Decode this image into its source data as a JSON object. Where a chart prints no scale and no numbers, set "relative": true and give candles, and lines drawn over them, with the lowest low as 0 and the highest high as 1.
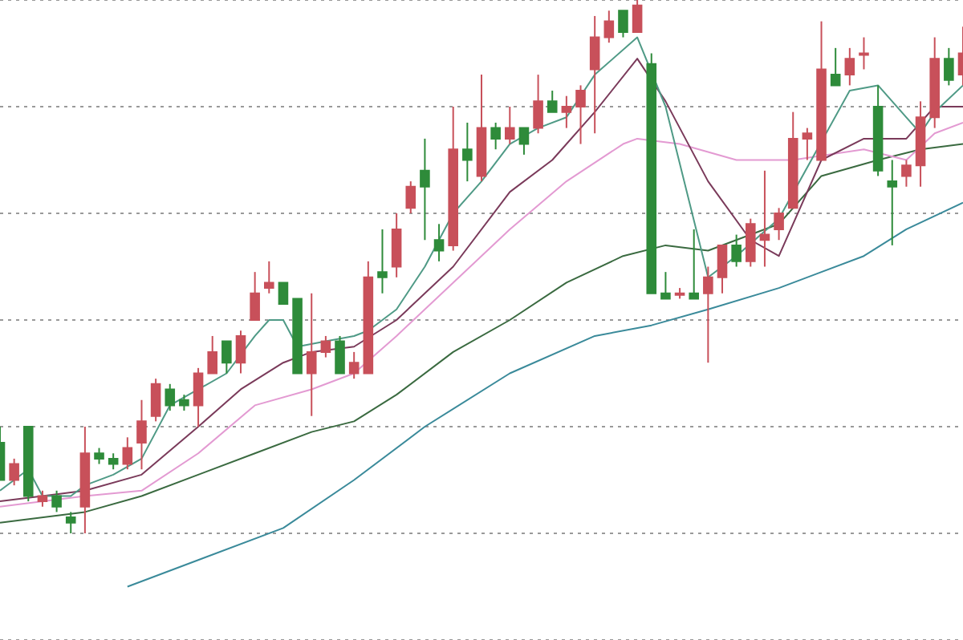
{
  "chart_data": {
    "type": "candlestick",
    "relative": true,
    "grid": "y",
    "categories": [
      null,
      null,
      null,
      null,
      null,
      null,
      null,
      null,
      null,
      null,
      null,
      null,
      null,
      null,
      null,
      null,
      null,
      null,
      null,
      null,
      null,
      null,
      null,
      null,
      null,
      null,
      null,
      null,
      null,
      null,
      null,
      null,
      null,
      null,
      null,
      null,
      null,
      null,
      null,
      null,
      null,
      null,
      null,
      null,
      null,
      null,
      null,
      null,
      null,
      null,
      null,
      null,
      null,
      null,
      null,
      null,
      null,
      null,
      null,
      null,
      null,
      null,
      null,
      null,
      null,
      null,
      null,
      null,
      null
    ],
    "ohlc": [
      [
        0.17,
        0.2,
        0.1,
        0.1
      ],
      [
        0.1,
        0.14,
        0.09,
        0.13
      ],
      [
        0.2,
        0.2,
        0.06,
        0.07
      ],
      [
        0.06,
        0.08,
        0.05,
        0.07
      ],
      [
        0.07,
        0.08,
        0.04,
        0.05
      ],
      [
        0.03,
        0.04,
        0.0,
        0.02
      ],
      [
        0.05,
        0.2,
        0.0,
        0.15
      ],
      [
        0.15,
        0.16,
        0.13,
        0.14
      ],
      [
        0.14,
        0.15,
        0.12,
        0.13
      ],
      [
        0.13,
        0.18,
        0.12,
        0.16
      ],
      [
        0.17,
        0.25,
        0.12,
        0.21
      ],
      [
        0.22,
        0.29,
        0.21,
        0.28
      ],
      [
        0.27,
        0.28,
        0.23,
        0.24
      ],
      [
        0.25,
        0.26,
        0.23,
        0.24
      ],
      [
        0.24,
        0.31,
        0.2,
        0.3
      ],
      [
        0.3,
        0.37,
        0.3,
        0.34
      ],
      [
        0.36,
        0.36,
        0.3,
        0.32
      ],
      [
        0.32,
        0.38,
        0.3,
        0.37
      ],
      [
        0.4,
        0.49,
        0.4,
        0.45
      ],
      [
        0.46,
        0.51,
        0.45,
        0.47
      ],
      [
        0.47,
        0.47,
        0.43,
        0.43
      ],
      [
        0.44,
        0.44,
        0.3,
        0.3
      ],
      [
        0.3,
        0.45,
        0.22,
        0.34
      ],
      [
        0.34,
        0.37,
        0.33,
        0.36
      ],
      [
        0.36,
        0.37,
        0.3,
        0.3
      ],
      [
        0.3,
        0.34,
        0.29,
        0.32
      ],
      [
        0.3,
        0.51,
        0.3,
        0.48
      ],
      [
        0.49,
        0.57,
        0.45,
        0.48
      ],
      [
        0.5,
        0.6,
        0.48,
        0.57
      ],
      [
        0.61,
        0.66,
        0.6,
        0.65
      ],
      [
        0.68,
        0.74,
        0.55,
        0.65
      ],
      [
        0.55,
        0.58,
        0.51,
        0.53
      ],
      [
        0.54,
        0.8,
        0.53,
        0.72
      ],
      [
        0.72,
        0.77,
        0.66,
        0.7
      ],
      [
        0.67,
        0.86,
        0.66,
        0.76
      ],
      [
        0.76,
        0.77,
        0.72,
        0.74
      ],
      [
        0.74,
        0.8,
        0.73,
        0.76
      ],
      [
        0.76,
        0.76,
        0.71,
        0.73
      ],
      [
        0.76,
        0.86,
        0.75,
        0.81
      ],
      [
        0.81,
        0.83,
        0.79,
        0.79
      ],
      [
        0.79,
        0.82,
        0.76,
        0.8
      ],
      [
        0.8,
        0.84,
        0.73,
        0.83
      ],
      [
        0.87,
        0.97,
        0.75,
        0.93
      ],
      [
        0.93,
        0.98,
        0.92,
        0.96
      ],
      [
        0.98,
        0.98,
        0.93,
        0.94
      ],
      [
        0.94,
        1.0,
        0.94,
        0.99
      ],
      [
        0.88,
        0.9,
        0.45,
        0.45
      ],
      [
        0.45,
        0.49,
        0.44,
        0.44
      ],
      [
        0.45,
        0.46,
        0.44,
        0.45
      ],
      [
        0.45,
        0.57,
        0.44,
        0.44
      ],
      [
        0.45,
        0.5,
        0.32,
        0.48
      ],
      [
        0.48,
        0.54,
        0.45,
        0.54
      ],
      [
        0.54,
        0.56,
        0.5,
        0.51
      ],
      [
        0.51,
        0.59,
        0.5,
        0.58
      ],
      [
        0.55,
        0.68,
        0.5,
        0.56
      ],
      [
        0.57,
        0.61,
        0.55,
        0.6
      ],
      [
        0.61,
        0.79,
        0.61,
        0.74
      ],
      [
        0.74,
        0.76,
        0.7,
        0.75
      ],
      [
        0.7,
        0.96,
        0.7,
        0.87
      ],
      [
        0.86,
        0.91,
        0.84,
        0.84
      ],
      [
        0.86,
        0.91,
        0.84,
        0.89
      ],
      [
        0.9,
        0.93,
        0.87,
        0.9
      ],
      [
        0.8,
        0.84,
        0.67,
        0.68
      ],
      [
        0.66,
        0.7,
        0.54,
        0.65
      ],
      [
        0.67,
        0.7,
        0.65,
        0.69
      ],
      [
        0.69,
        0.81,
        0.65,
        0.78
      ],
      [
        0.78,
        0.93,
        0.76,
        0.89
      ],
      [
        0.89,
        0.91,
        0.84,
        0.85
      ],
      [
        0.86,
        0.95,
        0.84,
        0.9
      ]
    ],
    "colors": [
      "#2e8b3a",
      "#c8505a",
      "#2e8b3a",
      "#c8505a",
      "#2e8b3a",
      "#2e8b3a",
      "#c8505a",
      "#2e8b3a",
      "#2e8b3a",
      "#c8505a",
      "#c8505a",
      "#c8505a",
      "#2e8b3a",
      "#2e8b3a",
      "#c8505a",
      "#c8505a",
      "#2e8b3a",
      "#c8505a",
      "#c8505a",
      "#c8505a",
      "#2e8b3a",
      "#2e8b3a",
      "#c8505a",
      "#c8505a",
      "#2e8b3a",
      "#c8505a",
      "#c8505a",
      "#2e8b3a",
      "#c8505a",
      "#c8505a",
      "#2e8b3a",
      "#2e8b3a",
      "#c8505a",
      "#2e8b3a",
      "#c8505a",
      "#2e8b3a",
      "#c8505a",
      "#2e8b3a",
      "#c8505a",
      "#2e8b3a",
      "#c8505a",
      "#c8505a",
      "#c8505a",
      "#c8505a",
      "#2e8b3a",
      "#c8505a",
      "#2e8b3a",
      "#2e8b3a",
      "#c8505a",
      "#2e8b3a",
      "#c8505a",
      "#c8505a",
      "#2e8b3a",
      "#c8505a",
      "#c8505a",
      "#c8505a",
      "#c8505a",
      "#c8505a",
      "#c8505a",
      "#2e8b3a",
      "#c8505a",
      "#c8505a",
      "#2e8b3a",
      "#2e8b3a",
      "#c8505a",
      "#c8505a",
      "#c8505a",
      "#2e8b3a",
      "#c8505a"
    ],
    "series": [
      {
        "type": "line",
        "color": "#4f9a86",
        "values": [
          0.08,
          null,
          0.12,
          0.07,
          null,
          0.07,
          0.09,
          null,
          0.11,
          null,
          0.14,
          null,
          0.24,
          null,
          0.27,
          null,
          0.3,
          null,
          0.37,
          0.4,
          0.4,
          0.35,
          null,
          0.36,
          null,
          0.37,
          0.38,
          null,
          0.42,
          null,
          0.5,
          null,
          0.6,
          null,
          0.66,
          null,
          0.73,
          null,
          0.76,
          null,
          0.78,
          null,
          0.86,
          null,
          null,
          0.93,
          null,
          0.8,
          null,
          null,
          0.48,
          null,
          0.52,
          null,
          null,
          0.59,
          null,
          null,
          null,
          null,
          0.83,
          null,
          0.84,
          null,
          0.78,
          0.75,
          0.79,
          null,
          0.84
        ]
      },
      {
        "type": "line",
        "color": "#7a3a5a",
        "values": [
          0.06,
          null,
          null,
          0.07,
          null,
          null,
          0.08,
          null,
          null,
          null,
          0.11,
          null,
          null,
          null,
          0.2,
          null,
          null,
          0.27,
          null,
          null,
          0.32,
          null,
          0.34,
          null,
          null,
          0.35,
          null,
          null,
          0.4,
          null,
          null,
          null,
          0.5,
          null,
          null,
          null,
          0.64,
          null,
          null,
          0.7,
          null,
          null,
          0.79,
          null,
          null,
          0.89,
          null,
          0.81,
          null,
          null,
          0.66,
          null,
          null,
          0.55,
          null,
          0.52,
          null,
          null,
          0.7,
          null,
          null,
          0.74,
          null,
          null,
          0.74,
          null,
          0.8,
          null,
          0.8
        ]
      },
      {
        "type": "line",
        "color": "#e39ad2",
        "values": [
          0.05,
          null,
          null,
          null,
          null,
          null,
          0.07,
          null,
          null,
          null,
          0.08,
          null,
          null,
          null,
          0.15,
          null,
          null,
          null,
          0.24,
          null,
          null,
          null,
          0.27,
          null,
          null,
          0.3,
          null,
          null,
          0.37,
          null,
          null,
          null,
          0.47,
          null,
          null,
          null,
          0.57,
          null,
          null,
          null,
          0.66,
          null,
          null,
          null,
          0.73,
          0.74,
          null,
          null,
          0.73,
          null,
          null,
          null,
          0.7,
          null,
          null,
          null,
          0.7,
          null,
          null,
          null,
          null,
          0.72,
          null,
          null,
          0.7,
          null,
          0.75,
          null,
          0.77
        ]
      },
      {
        "type": "line",
        "color": "#3a6a40",
        "values": [
          0.02,
          null,
          null,
          null,
          null,
          null,
          0.04,
          null,
          null,
          null,
          0.07,
          null,
          null,
          null,
          0.11,
          null,
          null,
          null,
          0.15,
          null,
          null,
          null,
          0.19,
          null,
          null,
          0.21,
          null,
          null,
          0.26,
          null,
          null,
          null,
          0.34,
          null,
          null,
          null,
          0.4,
          null,
          null,
          null,
          0.47,
          null,
          null,
          null,
          0.52,
          null,
          null,
          0.54,
          null,
          null,
          0.53,
          null,
          null,
          null,
          null,
          0.58,
          null,
          null,
          0.67,
          null,
          null,
          null,
          0.7,
          null,
          null,
          0.72,
          null,
          null,
          0.73
        ]
      },
      {
        "type": "line",
        "color": "#3a8a9a",
        "values": [
          null,
          null,
          null,
          null,
          null,
          null,
          null,
          null,
          null,
          -0.1,
          null,
          null,
          null,
          null,
          -0.05,
          null,
          null,
          null,
          null,
          null,
          0.01,
          null,
          null,
          null,
          null,
          0.1,
          null,
          null,
          null,
          null,
          0.2,
          null,
          null,
          null,
          null,
          null,
          0.3,
          null,
          null,
          null,
          null,
          null,
          0.37,
          null,
          null,
          null,
          0.39,
          null,
          null,
          null,
          0.42,
          null,
          null,
          null,
          null,
          0.46,
          null,
          null,
          null,
          null,
          null,
          0.52,
          null,
          null,
          0.57,
          null,
          null,
          null,
          0.62
        ]
      }
    ]
  }
}
